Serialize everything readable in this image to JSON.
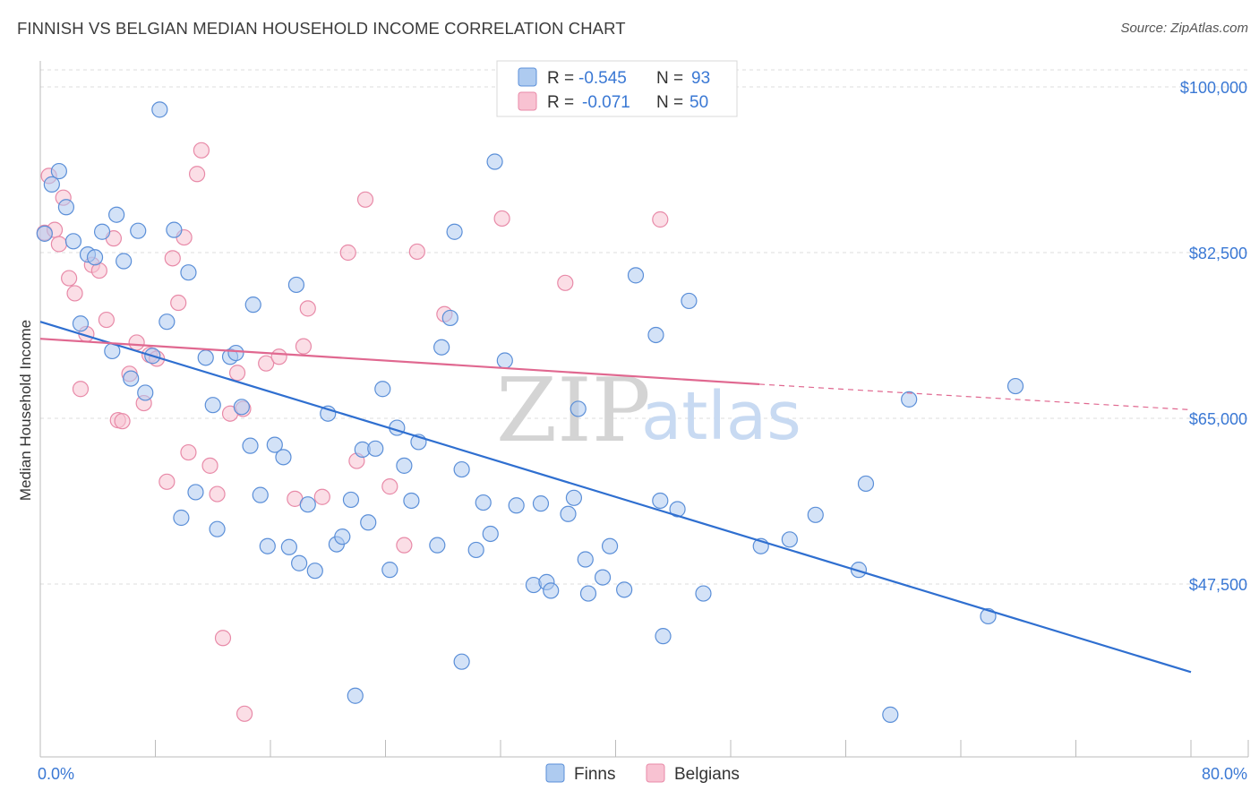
{
  "header": {
    "title": "FINNISH VS BELGIAN MEDIAN HOUSEHOLD INCOME CORRELATION CHART",
    "source": "Source: ZipAtlas.com"
  },
  "colors": {
    "finns_fill": "#aecbf0",
    "finns_stroke": "#5b8fd8",
    "finns_line": "#2f6fd0",
    "belgians_fill": "#f8c2d2",
    "belgians_stroke": "#e88aa8",
    "belgians_line": "#e06890",
    "value_text": "#3a78d4",
    "grid": "#dddddd"
  },
  "watermark": {
    "zip": "ZIP",
    "atlas": "atlas"
  },
  "chart_data": {
    "type": "scatter",
    "title": "FINNISH VS BELGIAN MEDIAN HOUSEHOLD INCOME CORRELATION CHART",
    "xlabel": "",
    "ylabel": "Median Household Income",
    "xlim": [
      0,
      80
    ],
    "ylim": [
      31000,
      102000
    ],
    "x_tick_labels": [
      "0.0%",
      "80.0%"
    ],
    "y_ticks": [
      47500,
      65000,
      82500,
      100000
    ],
    "y_tick_labels": [
      "$47,500",
      "$65,000",
      "$82,500",
      "$100,000"
    ],
    "grid": true,
    "legend_position": "top-center",
    "stats_box": [
      {
        "series": "Finns",
        "r_label": "R =",
        "r_value": "-0.545",
        "n_label": "N =",
        "n_value": "93"
      },
      {
        "series": "Belgians",
        "r_label": "R =",
        "r_value": "-0.071",
        "n_label": "N =",
        "n_value": "50"
      }
    ],
    "series": [
      {
        "name": "Finns",
        "trend": {
          "x0": 0,
          "y0": 75200,
          "x1": 80,
          "y1": 38200
        },
        "points": [
          [
            0.3,
            84500
          ],
          [
            0.8,
            89700
          ],
          [
            1.3,
            91100
          ],
          [
            1.8,
            87300
          ],
          [
            2.3,
            83700
          ],
          [
            2.8,
            75000
          ],
          [
            3.3,
            82300
          ],
          [
            3.8,
            82000
          ],
          [
            4.3,
            84700
          ],
          [
            5.0,
            72100
          ],
          [
            5.3,
            86500
          ],
          [
            5.8,
            81600
          ],
          [
            6.3,
            69200
          ],
          [
            6.8,
            84800
          ],
          [
            7.3,
            67700
          ],
          [
            7.8,
            71600
          ],
          [
            8.3,
            97600
          ],
          [
            8.8,
            75200
          ],
          [
            9.3,
            84900
          ],
          [
            9.8,
            54500
          ],
          [
            10.3,
            80400
          ],
          [
            10.8,
            57200
          ],
          [
            11.5,
            71400
          ],
          [
            12.0,
            66400
          ],
          [
            12.3,
            53300
          ],
          [
            13.2,
            71500
          ],
          [
            13.6,
            71900
          ],
          [
            14.0,
            66200
          ],
          [
            14.6,
            62100
          ],
          [
            14.8,
            77000
          ],
          [
            15.3,
            56900
          ],
          [
            15.8,
            51500
          ],
          [
            16.3,
            62200
          ],
          [
            16.9,
            60900
          ],
          [
            17.3,
            51400
          ],
          [
            17.8,
            79100
          ],
          [
            18.0,
            49700
          ],
          [
            18.6,
            55900
          ],
          [
            19.1,
            48900
          ],
          [
            20.0,
            65500
          ],
          [
            20.6,
            51700
          ],
          [
            21.0,
            52500
          ],
          [
            21.6,
            56400
          ],
          [
            21.9,
            35700
          ],
          [
            22.4,
            61700
          ],
          [
            22.8,
            54000
          ],
          [
            23.3,
            61800
          ],
          [
            23.8,
            68100
          ],
          [
            24.3,
            49000
          ],
          [
            24.8,
            64000
          ],
          [
            25.3,
            60000
          ],
          [
            25.8,
            56300
          ],
          [
            26.3,
            62500
          ],
          [
            27.6,
            51600
          ],
          [
            27.9,
            72500
          ],
          [
            28.8,
            84700
          ],
          [
            28.5,
            75600
          ],
          [
            29.3,
            59600
          ],
          [
            29.3,
            39300
          ],
          [
            30.3,
            51100
          ],
          [
            30.8,
            56100
          ],
          [
            31.3,
            52800
          ],
          [
            31.6,
            92100
          ],
          [
            32.3,
            71100
          ],
          [
            33.1,
            55800
          ],
          [
            34.3,
            47400
          ],
          [
            34.8,
            56000
          ],
          [
            35.2,
            47700
          ],
          [
            35.5,
            46800
          ],
          [
            36.7,
            54900
          ],
          [
            37.1,
            56600
          ],
          [
            37.4,
            66000
          ],
          [
            37.9,
            50100
          ],
          [
            38.1,
            46500
          ],
          [
            39.1,
            48200
          ],
          [
            39.6,
            51500
          ],
          [
            40.6,
            46900
          ],
          [
            41.4,
            80100
          ],
          [
            42.8,
            73800
          ],
          [
            43.1,
            56300
          ],
          [
            43.3,
            42000
          ],
          [
            44.3,
            55400
          ],
          [
            45.1,
            77400
          ],
          [
            46.1,
            46500
          ],
          [
            50.1,
            51500
          ],
          [
            52.1,
            52200
          ],
          [
            53.9,
            54800
          ],
          [
            56.9,
            49000
          ],
          [
            57.4,
            58100
          ],
          [
            59.1,
            33700
          ],
          [
            60.4,
            67000
          ],
          [
            65.9,
            44100
          ],
          [
            67.8,
            68400
          ]
        ]
      },
      {
        "name": "Belgians",
        "trend": {
          "x0": 0,
          "y0": 73400,
          "x1": 50,
          "y1": 68600
        },
        "dashed_extension": {
          "x0": 50,
          "y0": 68600,
          "x1": 80,
          "y1": 65900
        },
        "points": [
          [
            0.3,
            84600
          ],
          [
            0.6,
            90600
          ],
          [
            1.0,
            84900
          ],
          [
            1.3,
            83400
          ],
          [
            1.6,
            88300
          ],
          [
            2.0,
            79800
          ],
          [
            2.4,
            78200
          ],
          [
            2.8,
            68100
          ],
          [
            3.2,
            73900
          ],
          [
            3.6,
            81200
          ],
          [
            4.1,
            80600
          ],
          [
            4.6,
            75400
          ],
          [
            5.1,
            84000
          ],
          [
            5.4,
            64800
          ],
          [
            5.7,
            64700
          ],
          [
            6.2,
            69700
          ],
          [
            6.7,
            73000
          ],
          [
            7.2,
            66600
          ],
          [
            7.6,
            71700
          ],
          [
            8.1,
            71300
          ],
          [
            8.8,
            58300
          ],
          [
            9.2,
            81900
          ],
          [
            9.6,
            77200
          ],
          [
            10.0,
            84100
          ],
          [
            10.3,
            61400
          ],
          [
            10.9,
            90800
          ],
          [
            11.2,
            93300
          ],
          [
            11.8,
            60000
          ],
          [
            12.3,
            57000
          ],
          [
            12.7,
            41800
          ],
          [
            13.2,
            65500
          ],
          [
            13.7,
            69800
          ],
          [
            14.1,
            66000
          ],
          [
            14.2,
            33800
          ],
          [
            15.7,
            70800
          ],
          [
            16.6,
            71500
          ],
          [
            17.7,
            56500
          ],
          [
            18.3,
            72600
          ],
          [
            18.6,
            76600
          ],
          [
            19.6,
            56700
          ],
          [
            21.4,
            82500
          ],
          [
            22.0,
            60500
          ],
          [
            22.6,
            88100
          ],
          [
            24.3,
            57800
          ],
          [
            25.3,
            51600
          ],
          [
            26.2,
            82600
          ],
          [
            28.1,
            76000
          ],
          [
            32.1,
            86100
          ],
          [
            36.5,
            79300
          ],
          [
            43.1,
            86000
          ]
        ]
      }
    ],
    "legend": [
      "Finns",
      "Belgians"
    ]
  }
}
